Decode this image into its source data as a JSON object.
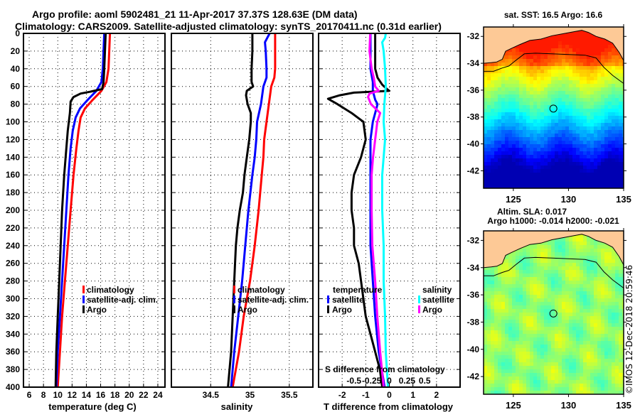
{
  "header": {
    "title_line1": "Argo profile: aoml 5902481_21 11-Apr-2017 37.37S 128.63E (DM data)",
    "title_line2": "Climatology: CARS2009. Satellite-adjusted climatology: synTS_20170411.nc (0.31d earlier)"
  },
  "colors": {
    "climatology": "#ff0000",
    "satellite_adj": "#0000ff",
    "argo": "#000000",
    "salinity_satellite": "#00ffff",
    "salinity_argo": "#ff00ff",
    "land": "#fdc996"
  },
  "chart_data": [
    {
      "type": "line",
      "id": "temperature",
      "xlabel": "temperature (deg C)",
      "ylabel": "",
      "xlim": [
        5.2,
        25
      ],
      "ylim": [
        400,
        0
      ],
      "xticks": [
        6,
        8,
        10,
        12,
        14,
        16,
        18,
        20,
        22,
        24
      ],
      "yticks": [
        0,
        20,
        40,
        60,
        80,
        100,
        120,
        140,
        160,
        180,
        200,
        220,
        240,
        260,
        280,
        300,
        320,
        340,
        360,
        380,
        400
      ],
      "grid": true,
      "legend": {
        "placement": "center-right",
        "entries": [
          "climatology",
          "satellite-adj. clim.",
          "Argo"
        ]
      },
      "series": [
        {
          "name": "climatology",
          "color": "#ff0000",
          "depth": [
            0,
            20,
            40,
            55,
            65,
            75,
            85,
            95,
            110,
            130,
            160,
            200,
            240,
            280,
            320,
            360,
            400
          ],
          "values": [
            17.3,
            17.2,
            17.1,
            16.8,
            16.1,
            14.9,
            13.8,
            13.2,
            12.9,
            12.6,
            12.2,
            11.8,
            11.4,
            11.0,
            10.6,
            10.3,
            10.0
          ]
        },
        {
          "name": "satellite-adj. clim.",
          "color": "#0000ff",
          "depth": [
            0,
            20,
            40,
            55,
            65,
            75,
            85,
            95,
            110,
            130,
            160,
            200,
            240,
            280,
            320,
            360,
            400
          ],
          "values": [
            16.5,
            16.4,
            16.3,
            16.1,
            15.4,
            14.2,
            13.1,
            12.5,
            12.1,
            11.8,
            11.5,
            11.2,
            10.9,
            10.6,
            10.3,
            10.0,
            9.8
          ]
        },
        {
          "name": "Argo",
          "color": "#000000",
          "depth": [
            0,
            20,
            40,
            55,
            63,
            66,
            68,
            72,
            77,
            90,
            110,
            130,
            160,
            200,
            240,
            280,
            320,
            360,
            400
          ],
          "values": [
            16.7,
            16.6,
            16.5,
            16.4,
            16.2,
            14.5,
            13.2,
            12.2,
            11.8,
            11.7,
            11.4,
            11.2,
            10.9,
            10.6,
            10.4,
            10.2,
            10.0,
            9.8,
            9.7
          ]
        }
      ]
    },
    {
      "type": "line",
      "id": "salinity",
      "xlabel": "salinity",
      "xlim": [
        34.0,
        35.8
      ],
      "ylim": [
        400,
        0
      ],
      "xticks": [
        34.5,
        35,
        35.5
      ],
      "yticks": [
        0,
        20,
        40,
        60,
        80,
        100,
        120,
        140,
        160,
        180,
        200,
        220,
        240,
        260,
        280,
        300,
        320,
        340,
        360,
        380,
        400
      ],
      "grid": true,
      "legend": {
        "placement": "center-right",
        "entries": [
          "climatology",
          "satellite-adj. clim.",
          "Argo"
        ]
      },
      "series": [
        {
          "name": "climatology",
          "color": "#ff0000",
          "depth": [
            0,
            20,
            40,
            50,
            60,
            80,
            100,
            120,
            140,
            160,
            200,
            240,
            280,
            320,
            360,
            400
          ],
          "values": [
            35.32,
            35.32,
            35.32,
            35.31,
            35.27,
            35.24,
            35.21,
            35.18,
            35.17,
            35.15,
            35.11,
            35.06,
            35.0,
            34.92,
            34.86,
            34.78
          ]
        },
        {
          "name": "satellite-adj. clim.",
          "color": "#0000ff",
          "depth": [
            0,
            5,
            10,
            20,
            40,
            50,
            60,
            80,
            100,
            120,
            140,
            160,
            200,
            240,
            280,
            320,
            360,
            400
          ],
          "values": [
            35.25,
            35.22,
            35.19,
            35.2,
            35.21,
            35.21,
            35.17,
            35.14,
            35.09,
            35.08,
            35.06,
            35.03,
            34.98,
            34.94,
            34.9,
            34.85,
            34.8,
            34.76
          ]
        },
        {
          "name": "Argo",
          "color": "#000000",
          "depth": [
            0,
            20,
            40,
            55,
            60,
            65,
            70,
            80,
            90,
            100,
            120,
            140,
            160,
            180,
            200,
            220,
            240,
            280,
            320,
            360,
            400
          ],
          "values": [
            35.03,
            35.03,
            35.02,
            35.02,
            35.04,
            34.96,
            34.95,
            34.97,
            35.01,
            35.01,
            34.99,
            34.96,
            34.93,
            34.91,
            34.87,
            34.84,
            34.82,
            34.8,
            34.78,
            34.76,
            34.72
          ]
        }
      ]
    },
    {
      "type": "line",
      "id": "difference",
      "xlabel": "T difference from climatology",
      "x2label": "S difference from climatology",
      "xlim": [
        -3,
        3
      ],
      "ylim": [
        400,
        0
      ],
      "xticks": [
        -2,
        -1,
        0,
        1,
        2
      ],
      "x2ticks": [
        -0.5,
        -0.25,
        0,
        0.25,
        0.5
      ],
      "x2ticklabels": [
        "-0.5",
        "-0.25",
        "0",
        "0.25",
        "0.5"
      ],
      "yticks": [
        0,
        20,
        40,
        60,
        80,
        100,
        120,
        140,
        160,
        180,
        200,
        220,
        240,
        260,
        280,
        300,
        320,
        340,
        360,
        380,
        400
      ],
      "grid": true,
      "legend": {
        "placement": "lower-center",
        "temperature_title": "temperature",
        "salinity_title": "salinity",
        "entries": [
          "satellite",
          "Argo",
          "satellite",
          "Argo"
        ]
      },
      "series": [
        {
          "name": "temperature satellite",
          "color": "#0000ff",
          "depth": [
            0,
            20,
            40,
            55,
            65,
            75,
            80,
            90,
            100,
            120,
            140,
            160,
            200,
            240,
            280,
            320,
            360,
            400
          ],
          "values": [
            -0.8,
            -0.8,
            -0.8,
            -0.7,
            -0.7,
            -0.6,
            -0.5,
            -0.6,
            -0.7,
            -0.8,
            -0.8,
            -0.8,
            -0.8,
            -0.8,
            -0.7,
            -0.6,
            -0.45,
            -0.2
          ]
        },
        {
          "name": "temperature Argo",
          "color": "#000000",
          "depth": [
            0,
            20,
            40,
            50,
            58,
            63,
            65,
            66,
            67,
            70,
            74,
            80,
            90,
            100,
            120,
            140,
            160,
            180,
            200,
            220,
            240,
            260,
            280,
            300,
            320,
            340,
            360,
            380,
            400
          ],
          "values": [
            -0.6,
            -0.6,
            -0.6,
            -0.5,
            -0.3,
            -0.1,
            0.0,
            -0.8,
            -1.5,
            -2.1,
            -2.6,
            -2.2,
            -1.6,
            -1.1,
            -1.0,
            -1.2,
            -1.5,
            -1.6,
            -1.6,
            -1.5,
            -1.5,
            -1.3,
            -1.2,
            -1.1,
            -1.0,
            -0.8,
            -0.6,
            -0.4,
            -0.3
          ]
        },
        {
          "name": "salinity satellite",
          "color": "#00ffff",
          "depth": [
            0,
            5,
            10,
            20,
            40,
            60,
            80,
            100,
            120,
            140,
            160,
            200,
            240,
            280,
            320,
            360,
            400
          ],
          "values": [
            -0.05,
            -0.06,
            -0.1,
            -0.08,
            -0.06,
            -0.05,
            -0.07,
            -0.08,
            -0.06,
            -0.08,
            -0.1,
            -0.1,
            -0.08,
            -0.08,
            -0.06,
            -0.05,
            -0.02
          ]
        },
        {
          "name": "salinity Argo",
          "color": "#ff00ff",
          "depth": [
            0,
            20,
            40,
            50,
            60,
            65,
            68,
            72,
            80,
            90,
            100,
            120,
            140,
            160,
            200,
            240,
            280,
            320,
            360,
            400
          ],
          "values": [
            -0.27,
            -0.28,
            -0.25,
            -0.22,
            -0.2,
            -0.15,
            -0.28,
            -0.3,
            -0.26,
            -0.13,
            -0.17,
            -0.2,
            -0.23,
            -0.25,
            -0.25,
            -0.24,
            -0.2,
            -0.17,
            -0.13,
            -0.08
          ]
        }
      ]
    },
    {
      "type": "heatmap",
      "id": "sst_map",
      "title": "sat. SST: 16.5 Argo: 16.6",
      "xlim": [
        122.3,
        135
      ],
      "ylim": [
        -43.3,
        -31.3
      ],
      "xticks": [
        125,
        130,
        135
      ],
      "yticks": [
        -32,
        -34,
        -36,
        -38,
        -40,
        -42
      ],
      "marker": {
        "lon": 128.63,
        "lat": -37.37
      },
      "colormap": "jet",
      "description": "Satellite SST field: warm orange near the coast in the north, yellow/green mid latitudes, blue/navy in the south"
    },
    {
      "type": "heatmap",
      "id": "sla_map",
      "title_line1": "Altim. SLA: 0.017",
      "title_line2": "Argo h1000: -0.014 h2000: -0.021",
      "xlim": [
        122.3,
        135
      ],
      "ylim": [
        -43.3,
        -31.3
      ],
      "xticks": [
        125,
        130,
        135
      ],
      "yticks": [
        -32,
        -34,
        -36,
        -38,
        -40,
        -42
      ],
      "marker": {
        "lon": 128.63,
        "lat": -37.37
      },
      "colormap": "jet",
      "description": "Sea level anomaly field: mostly green with yellow-green blobs"
    }
  ],
  "footer": {
    "stamp": "©IMOS 12-Dec-2018 20:59:46"
  }
}
